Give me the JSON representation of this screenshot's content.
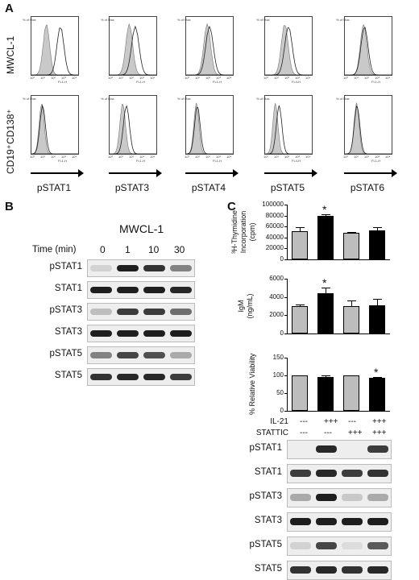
{
  "panel_a": {
    "letter": "A",
    "row_labels": [
      "MWCL-1",
      "CD19⁺CD138⁺"
    ],
    "column_labels": [
      "pSTAT1",
      "pSTAT3",
      "pSTAT4",
      "pSTAT5",
      "pSTAT6"
    ],
    "axis_y_text": "% of Max",
    "axis_x_ticks": [
      "10⁰",
      "10¹",
      "10²",
      "10³",
      "10⁴"
    ],
    "axis_x_names": [
      "FL1-H",
      "FL1-H",
      "FL1-H",
      "FL4-H",
      "FL1-H"
    ]
  },
  "panel_b": {
    "letter": "B",
    "title": "MWCL-1",
    "time_label": "Time (min)",
    "times": [
      "0",
      "1",
      "10",
      "30"
    ],
    "blots": [
      "pSTAT1",
      "STAT1",
      "pSTAT3",
      "STAT3",
      "pSTAT5",
      "STAT5"
    ]
  },
  "panel_c": {
    "letter": "C",
    "conditions": {
      "il21_label": "IL-21",
      "stattic_label": "STATTIC",
      "il21": [
        "---",
        "+++",
        "---",
        "+++"
      ],
      "stattic": [
        "---",
        "---",
        "+++",
        "+++"
      ]
    },
    "blots": [
      "pSTAT1",
      "STAT1",
      "pSTAT3",
      "STAT3",
      "pSTAT5",
      "STAT5"
    ]
  },
  "chart_data": [
    {
      "type": "bar",
      "ylabel_main": "³H-Thymidine",
      "ylabel_sub": "Incorporation",
      "ylabel_unit": "(cpm)",
      "yticks": [
        "100000",
        "80000",
        "60000",
        "40000",
        "20000",
        "0"
      ],
      "ylim": [
        0,
        100000
      ],
      "values": [
        52000,
        80000,
        48000,
        53000
      ],
      "errors": [
        7000,
        3000,
        2000,
        6000
      ],
      "colors": [
        "#bdbdbd",
        "#000000",
        "#bdbdbd",
        "#000000"
      ],
      "star": "*",
      "star_index": 1
    },
    {
      "type": "bar",
      "ylabel_main": "IgM",
      "ylabel_unit": "(ng/mL)",
      "yticks": [
        "6000",
        "4000",
        "2000",
        "0"
      ],
      "ylim": [
        0,
        6000
      ],
      "values": [
        3000,
        4400,
        3000,
        3100
      ],
      "errors": [
        200,
        600,
        600,
        700
      ],
      "colors": [
        "#bdbdbd",
        "#000000",
        "#bdbdbd",
        "#000000"
      ],
      "star": "*",
      "star_index": 1
    },
    {
      "type": "bar",
      "ylabel_main": "% Relative Viability",
      "yticks": [
        "150",
        "100",
        "50",
        "0"
      ],
      "ylim": [
        0,
        150
      ],
      "values": [
        100,
        95,
        100,
        93
      ],
      "errors": [
        1,
        6,
        1,
        2
      ],
      "colors": [
        "#bdbdbd",
        "#000000",
        "#bdbdbd",
        "#000000"
      ],
      "star": "*",
      "star_index": 3
    }
  ]
}
